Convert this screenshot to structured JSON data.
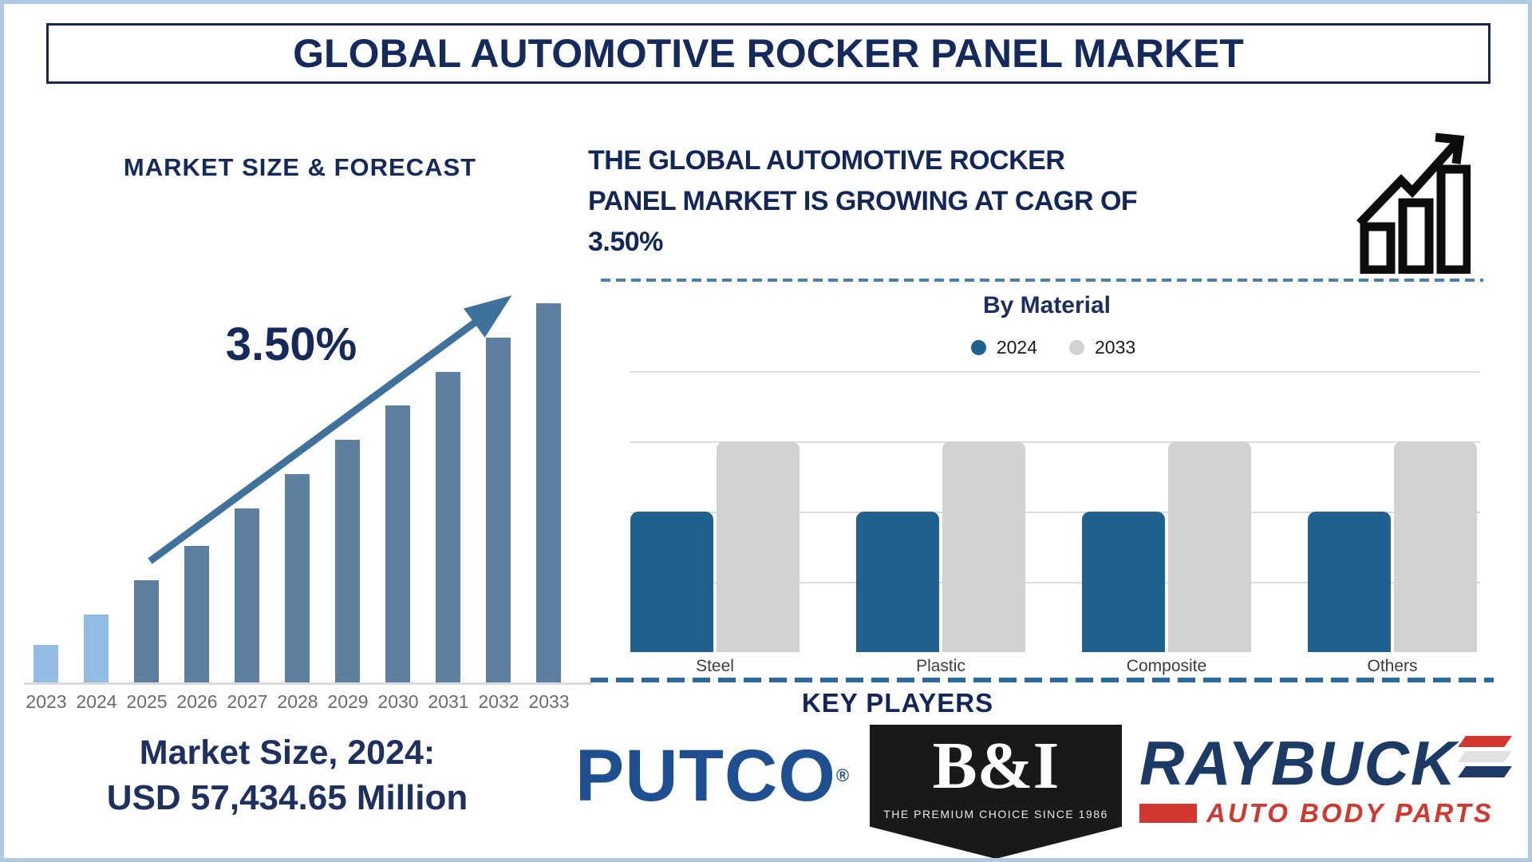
{
  "title": "GLOBAL AUTOMOTIVE ROCKER PANEL MARKET",
  "colors": {
    "navy_text": "#142a5c",
    "frame_border": "#b0c9e2",
    "title_border": "#1a2750",
    "forecast_bar_light": "#92bce4",
    "forecast_bar_dark": "#5d7fa0",
    "forecast_arrow": "#3f719d",
    "material_2024_blue": "#1f628f",
    "material_2033_gray": "#d2d2d2",
    "gridline": "#dcdcdc",
    "dashed_line_top": "#4d7fae",
    "dashed_line_bottom": "#2a69a3",
    "putco_blue": "#1d4f91",
    "bi_black": "#191919",
    "raybuck_navy": "#1b3a66",
    "raybuck_red": "#d2382f"
  },
  "left": {
    "heading": "MARKET SIZE & FORECAST",
    "cagr_label": "3.50%",
    "market_size_line1": "Market Size, 2024:",
    "market_size_line2": "USD 57,434.65 Million"
  },
  "right": {
    "heading_lines": {
      "0": "THE GLOBAL AUTOMOTIVE ROCKER",
      "1": "PANEL MARKET IS GROWING AT CAGR OF",
      "2": "3.50%"
    },
    "by_material_title": "By Material",
    "key_players_heading": "KEY PLAYERS",
    "logos": {
      "putco_text": "PUTCO",
      "putco_reg": "®",
      "bi_text": "B&I",
      "bi_tagline": "THE PREMIUM CHOICE SINCE 1986",
      "raybuck_text": "RAYBUCK",
      "raybuck_subtext": "AUTO BODY PARTS"
    }
  },
  "chart_data": [
    {
      "id": "market_size_forecast",
      "type": "bar",
      "title": "MARKET SIZE & FORECAST",
      "categories": [
        "2023",
        "2024",
        "2025",
        "2026",
        "2027",
        "2028",
        "2029",
        "2030",
        "2031",
        "2032",
        "2033"
      ],
      "values_relative_pct": [
        10,
        18,
        27,
        36,
        46,
        55,
        64,
        73,
        82,
        91,
        100
      ],
      "bar_colors": [
        "#92bce4",
        "#92bce4",
        "#5d7fa0",
        "#5d7fa0",
        "#5d7fa0",
        "#5d7fa0",
        "#5d7fa0",
        "#5d7fa0",
        "#5d7fa0",
        "#5d7fa0",
        "#5d7fa0"
      ],
      "annotations": {
        "cagr": "3.50%",
        "market_size_2024": "USD 57,434.65 Million",
        "trend_arrow": "ascending"
      },
      "ylabel": "",
      "xlabel": "",
      "axis_note": "no value axis shown; bar heights estimated as percent of tallest (2033) bar"
    },
    {
      "id": "by_material",
      "type": "bar",
      "title": "By Material",
      "categories": [
        "Steel",
        "Plastic",
        "Composite",
        "Others"
      ],
      "series": [
        {
          "name": "2024",
          "color": "#1f628f",
          "values_relative": [
            2,
            2,
            2,
            2
          ]
        },
        {
          "name": "2033",
          "color": "#d2d2d2",
          "values_relative": [
            3,
            3,
            3,
            3
          ]
        }
      ],
      "legend_position": "top-center",
      "grid": "horizontal",
      "axis_note": "no value axis shown; values in gridline units (one unit per gridline gap)"
    }
  ]
}
